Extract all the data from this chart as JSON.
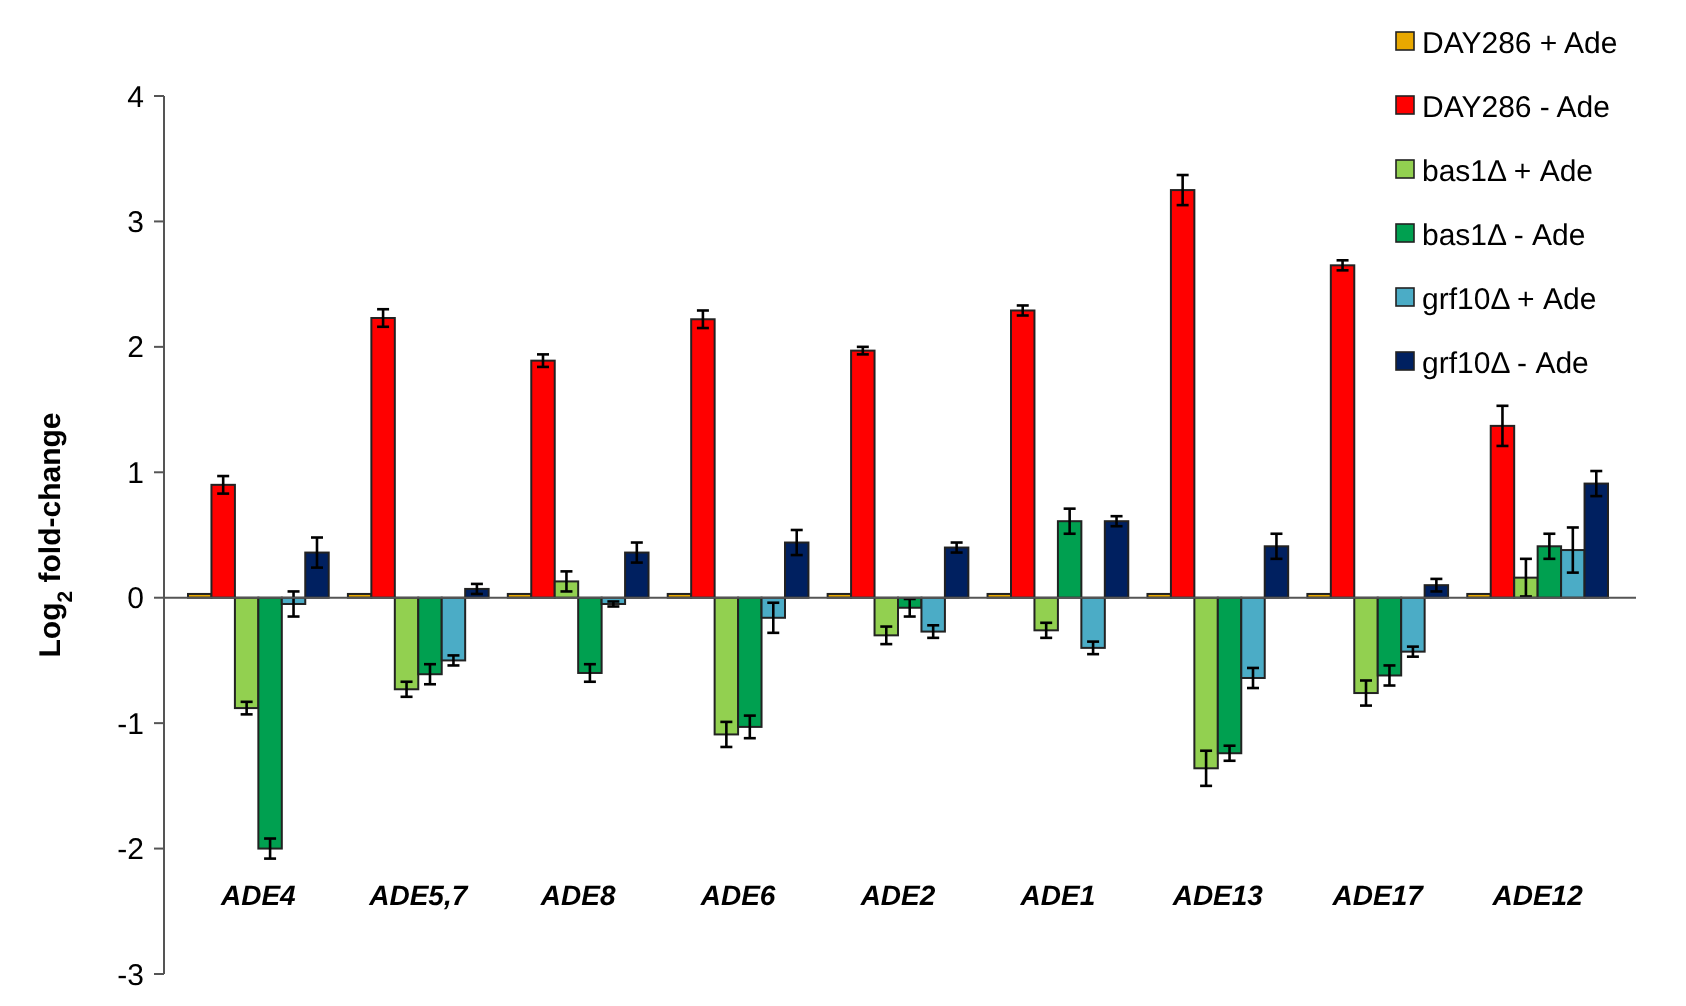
{
  "chart_data": {
    "type": "bar",
    "ylabel": "Log$_{2}$ fold-change",
    "categories": [
      "ADE4",
      "ADE5,7",
      "ADE8",
      "ADE6",
      "ADE2",
      "ADE1",
      "ADE13",
      "ADE17",
      "ADE12"
    ],
    "series": [
      {
        "name": "DAY286 + Ade",
        "color": "#e8a800",
        "values": [
          0.03,
          0.03,
          0.03,
          0.03,
          0.03,
          0.03,
          0.03,
          0.03,
          0.03
        ]
      },
      {
        "name": "DAY286 - Ade",
        "color": "#ff0000",
        "values": [
          0.9,
          2.23,
          1.89,
          2.22,
          1.97,
          2.29,
          3.25,
          2.65,
          1.37
        ],
        "errors": [
          0.07,
          0.07,
          0.05,
          0.07,
          0.03,
          0.04,
          0.12,
          0.04,
          0.16
        ]
      },
      {
        "name": "bas1Δ + Ade",
        "color": "#92d050",
        "values": [
          -0.88,
          -0.73,
          0.13,
          -1.09,
          -0.3,
          -0.26,
          -1.36,
          -0.76,
          0.16
        ],
        "errors": [
          0.05,
          0.06,
          0.08,
          0.1,
          0.07,
          0.06,
          0.14,
          0.1,
          0.15
        ]
      },
      {
        "name": "bas1Δ - Ade",
        "color": "#00a050",
        "values": [
          -2.0,
          -0.61,
          -0.6,
          -1.03,
          -0.08,
          0.61,
          -1.24,
          -0.62,
          0.41
        ],
        "errors": [
          0.08,
          0.08,
          0.07,
          0.09,
          0.07,
          0.1,
          0.06,
          0.08,
          0.1
        ]
      },
      {
        "name": "grf10Δ + Ade",
        "color": "#4bacc6",
        "values": [
          -0.05,
          -0.5,
          -0.05,
          -0.16,
          -0.27,
          -0.4,
          -0.64,
          -0.43,
          0.38
        ],
        "errors": [
          0.1,
          0.04,
          0.02,
          0.12,
          0.05,
          0.05,
          0.08,
          0.04,
          0.18
        ]
      },
      {
        "name": "grf10Δ - Ade",
        "color": "#002060",
        "values": [
          0.36,
          0.07,
          0.36,
          0.44,
          0.4,
          0.61,
          0.41,
          0.1,
          0.91
        ],
        "errors": [
          0.12,
          0.04,
          0.08,
          0.1,
          0.04,
          0.04,
          0.1,
          0.05,
          0.1
        ]
      }
    ],
    "ylim": [
      -3,
      4
    ],
    "yticks": [
      -3,
      -2,
      -1,
      0,
      1,
      2,
      3,
      4
    ],
    "legend": "top right"
  }
}
